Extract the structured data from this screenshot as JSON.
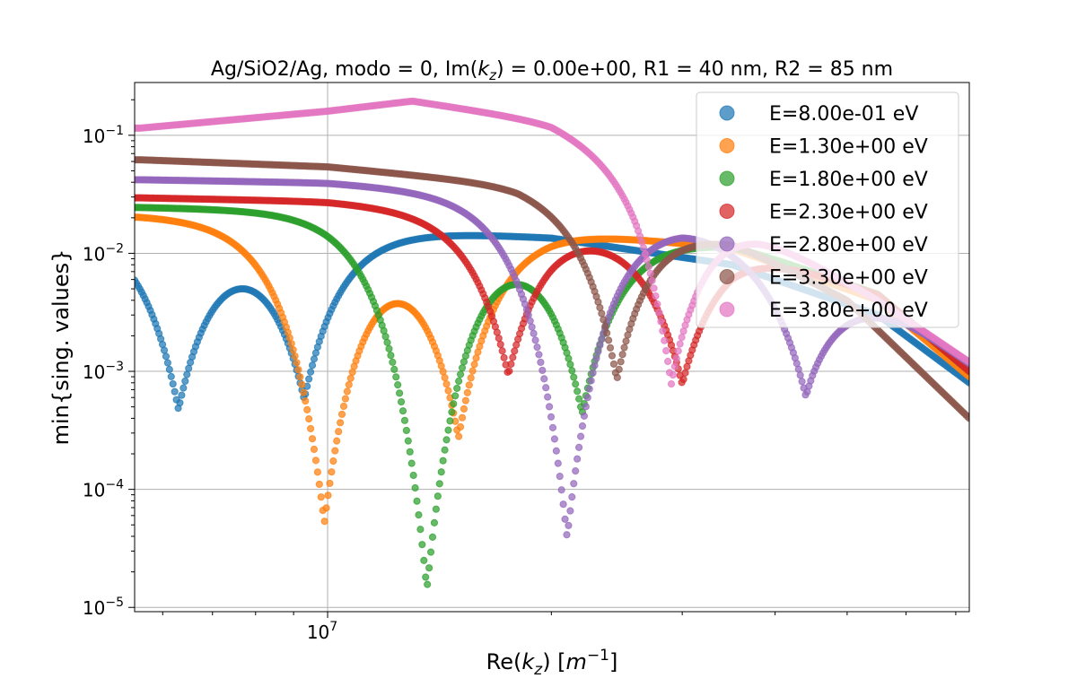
{
  "chart_data": {
    "type": "scatter",
    "title": "Ag/SiO2/Ag, modo = 0, Im(",
    "title_kz": "k",
    "title_kz_sub": "z",
    "title_rest": ") = 0.00e+00, R1 = 40 nm, R2 = 85 nm",
    "xlabel_pre": "Re(",
    "xlabel_k": "k",
    "xlabel_sub": "z",
    "xlabel_mid": ") [",
    "xlabel_m": "m",
    "xlabel_exp": "−1",
    "xlabel_post": "]",
    "ylabel": "min{sing. values}",
    "xscale": "log",
    "yscale": "log",
    "xlim": [
      5500000,
      73000000
    ],
    "ylim": [
      9.2e-06,
      0.28
    ],
    "grid": true,
    "legend_position": "upper right",
    "x_major_tick": {
      "base": "10",
      "exp": "7",
      "value": 10000000
    },
    "y_ticks": [
      {
        "value": 0.1,
        "base": "10",
        "exp": "−1"
      },
      {
        "value": 0.01,
        "base": "10",
        "exp": "−2"
      },
      {
        "value": 0.001,
        "base": "10",
        "exp": "−3"
      },
      {
        "value": 0.0001,
        "base": "10",
        "exp": "−4"
      },
      {
        "value": 1e-05,
        "base": "10",
        "exp": "−5"
      }
    ],
    "series": [
      {
        "name": "E=8.00e-01 eV",
        "color": "#1f77b4",
        "baseline": [
          [
            5600000.0,
            0.018
          ],
          [
            10000000.0,
            0.017
          ],
          [
            20000000.0,
            0.0135
          ],
          [
            35000000.0,
            0.008
          ],
          [
            55000000.0,
            0.003
          ],
          [
            73000000.0,
            0.0008
          ]
        ],
        "dips": [
          [
            6300000.0,
            0.00053
          ],
          [
            9300000.0,
            0.00065
          ]
        ],
        "dip_width": 0.05
      },
      {
        "name": "E=1.30e+00 eV",
        "color": "#ff7f0e",
        "baseline": [
          [
            5600000.0,
            0.021
          ],
          [
            10000000.0,
            0.0195
          ],
          [
            20000000.0,
            0.016
          ],
          [
            35000000.0,
            0.011
          ],
          [
            55000000.0,
            0.004
          ],
          [
            73000000.0,
            0.0009
          ]
        ],
        "dips": [
          [
            9900000.0,
            5.8e-05
          ],
          [
            15000000.0,
            0.00032
          ]
        ],
        "dip_width": 0.05
      },
      {
        "name": "E=1.80e+00 eV",
        "color": "#2ca02c",
        "baseline": [
          [
            5600000.0,
            0.0245
          ],
          [
            10000000.0,
            0.023
          ],
          [
            20000000.0,
            0.0185
          ],
          [
            35000000.0,
            0.012
          ],
          [
            55000000.0,
            0.0045
          ],
          [
            73000000.0,
            0.001
          ]
        ],
        "dips": [
          [
            13600000.0,
            1.5e-05
          ],
          [
            22000000.0,
            0.00049
          ]
        ],
        "dip_width": 0.05
      },
      {
        "name": "E=2.30e+00 eV",
        "color": "#d62728",
        "baseline": [
          [
            5600000.0,
            0.0295
          ],
          [
            10000000.0,
            0.0275
          ],
          [
            20000000.0,
            0.021
          ],
          [
            35000000.0,
            0.013
          ],
          [
            55000000.0,
            0.0045
          ],
          [
            73000000.0,
            0.001
          ]
        ],
        "dips": [
          [
            17500000.0,
            0.00095
          ],
          [
            30000000.0,
            0.0008
          ]
        ],
        "dip_width": 0.05
      },
      {
        "name": "E=2.80e+00 eV",
        "color": "#9467bd",
        "baseline": [
          [
            5600000.0,
            0.042
          ],
          [
            10000000.0,
            0.0395
          ],
          [
            20000000.0,
            0.03
          ],
          [
            30000000.0,
            0.02
          ],
          [
            45000000.0,
            0.009
          ],
          [
            60000000.0,
            0.003
          ],
          [
            73000000.0,
            0.0012
          ]
        ],
        "dips": [
          [
            21000000.0,
            3.9e-05
          ],
          [
            44000000.0,
            0.00062
          ]
        ],
        "dip_width": 0.05
      },
      {
        "name": "E=3.30e+00 eV",
        "color": "#8c564b",
        "baseline": [
          [
            5600000.0,
            0.062
          ],
          [
            10000000.0,
            0.054
          ],
          [
            18000000.0,
            0.038
          ],
          [
            25000000.0,
            0.023
          ],
          [
            35000000.0,
            0.013
          ],
          [
            50000000.0,
            0.004
          ],
          [
            73000000.0,
            0.0004
          ]
        ],
        "dips": [
          [
            24500000.0,
            0.00085
          ]
        ],
        "dip_width": 0.045
      },
      {
        "name": "E=3.80e+00 eV",
        "color": "#e377c2",
        "baseline": [
          [
            5600000.0,
            0.115
          ],
          [
            10000000.0,
            0.16
          ],
          [
            13000000.0,
            0.195
          ],
          [
            20000000.0,
            0.13
          ],
          [
            26000000.0,
            0.07
          ],
          [
            31000000.0,
            0.03
          ],
          [
            38000000.0,
            0.016
          ],
          [
            55000000.0,
            0.004
          ],
          [
            73000000.0,
            0.0012
          ]
        ],
        "dips": [
          [
            29000000.0,
            0.00078
          ]
        ],
        "dip_width": 0.045
      }
    ]
  }
}
